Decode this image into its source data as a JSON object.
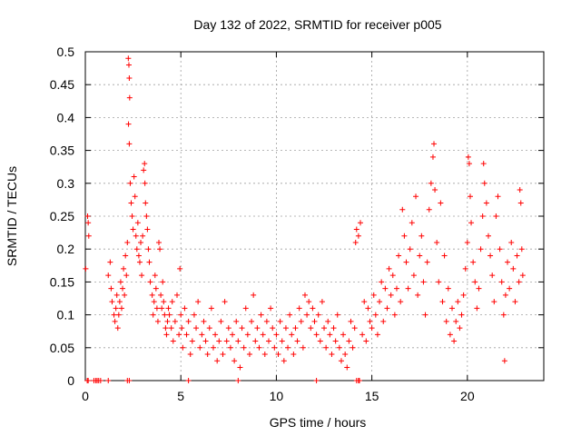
{
  "chart_data": {
    "type": "scatter",
    "title": "Day 132 of 2022, SRMTID for receiver p005",
    "xlabel": "GPS time / hours",
    "ylabel": "SRMTID / TECUs",
    "xlim": [
      0,
      24
    ],
    "ylim": [
      0,
      0.5
    ],
    "xticks": [
      0,
      5,
      10,
      15,
      20
    ],
    "yticks": [
      0,
      0.05,
      0.1,
      0.15,
      0.2,
      0.25,
      0.3,
      0.35,
      0.4,
      0.45,
      0.5
    ],
    "grid": true,
    "marker": "plus",
    "color": "#ff0000",
    "series": [
      {
        "name": "SRMTID",
        "points": [
          [
            0.02,
            0.17
          ],
          [
            0.12,
            0.25
          ],
          [
            0.15,
            0.24
          ],
          [
            0.18,
            0.22
          ],
          [
            0.1,
            0
          ],
          [
            0.15,
            0
          ],
          [
            0.45,
            0
          ],
          [
            0.55,
            0
          ],
          [
            0.62,
            0
          ],
          [
            0.7,
            0
          ],
          [
            0.8,
            0
          ],
          [
            1.2,
            0
          ],
          [
            2.2,
            0
          ],
          [
            2.3,
            0
          ],
          [
            5.4,
            0
          ],
          [
            8.0,
            0
          ],
          [
            12.1,
            0
          ],
          [
            14.2,
            0
          ],
          [
            14.3,
            0
          ],
          [
            14.35,
            0
          ],
          [
            1.2,
            0.16
          ],
          [
            1.3,
            0.18
          ],
          [
            1.35,
            0.14
          ],
          [
            1.4,
            0.12
          ],
          [
            1.5,
            0.1
          ],
          [
            1.55,
            0.09
          ],
          [
            1.6,
            0.11
          ],
          [
            1.65,
            0.13
          ],
          [
            1.7,
            0.08
          ],
          [
            1.75,
            0.1
          ],
          [
            1.8,
            0.12
          ],
          [
            1.85,
            0.15
          ],
          [
            1.9,
            0.11
          ],
          [
            1.95,
            0.14
          ],
          [
            2.0,
            0.17
          ],
          [
            2.05,
            0.13
          ],
          [
            2.1,
            0.19
          ],
          [
            2.15,
            0.16
          ],
          [
            2.2,
            0.21
          ],
          [
            2.25,
            0.49
          ],
          [
            2.28,
            0.48
          ],
          [
            2.3,
            0.46
          ],
          [
            2.32,
            0.43
          ],
          [
            2.26,
            0.39
          ],
          [
            2.3,
            0.36
          ],
          [
            2.35,
            0.3
          ],
          [
            2.4,
            0.27
          ],
          [
            2.45,
            0.25
          ],
          [
            2.5,
            0.23
          ],
          [
            2.55,
            0.31
          ],
          [
            2.6,
            0.28
          ],
          [
            2.65,
            0.22
          ],
          [
            2.7,
            0.2
          ],
          [
            2.75,
            0.24
          ],
          [
            2.8,
            0.19
          ],
          [
            2.85,
            0.18
          ],
          [
            2.9,
            0.21
          ],
          [
            2.95,
            0.16
          ],
          [
            3.0,
            0.22
          ],
          [
            3.05,
            0.32
          ],
          [
            3.1,
            0.33
          ],
          [
            3.12,
            0.3
          ],
          [
            3.15,
            0.27
          ],
          [
            3.2,
            0.25
          ],
          [
            3.25,
            0.23
          ],
          [
            3.3,
            0.2
          ],
          [
            3.35,
            0.18
          ],
          [
            3.4,
            0.15
          ],
          [
            3.5,
            0.13
          ],
          [
            3.55,
            0.1
          ],
          [
            3.6,
            0.12
          ],
          [
            3.65,
            0.16
          ],
          [
            3.7,
            0.14
          ],
          [
            3.75,
            0.11
          ],
          [
            3.8,
            0.09
          ],
          [
            3.85,
            0.21
          ],
          [
            3.9,
            0.2
          ],
          [
            3.95,
            0.13
          ],
          [
            4.0,
            0.11
          ],
          [
            4.05,
            0.15
          ],
          [
            4.1,
            0.12
          ],
          [
            4.15,
            0.1
          ],
          [
            4.2,
            0.08
          ],
          [
            4.25,
            0.07
          ],
          [
            4.3,
            0.09
          ],
          [
            4.35,
            0.11
          ],
          [
            4.4,
            0.1
          ],
          [
            4.5,
            0.08
          ],
          [
            4.55,
            0.12
          ],
          [
            4.6,
            0.06
          ],
          [
            4.7,
            0.09
          ],
          [
            4.8,
            0.13
          ],
          [
            4.9,
            0.07
          ],
          [
            4.95,
            0.17
          ],
          [
            5.0,
            0.1
          ],
          [
            5.05,
            0.08
          ],
          [
            5.1,
            0.05
          ],
          [
            5.2,
            0.11
          ],
          [
            5.3,
            0.07
          ],
          [
            5.4,
            0.09
          ],
          [
            5.5,
            0.04
          ],
          [
            5.6,
            0.06
          ],
          [
            5.7,
            0.1
          ],
          [
            5.8,
            0.08
          ],
          [
            5.9,
            0.12
          ],
          [
            6.0,
            0.05
          ],
          [
            6.1,
            0.07
          ],
          [
            6.2,
            0.09
          ],
          [
            6.3,
            0.06
          ],
          [
            6.4,
            0.04
          ],
          [
            6.5,
            0.08
          ],
          [
            6.6,
            0.11
          ],
          [
            6.7,
            0.05
          ],
          [
            6.8,
            0.07
          ],
          [
            6.9,
            0.03
          ],
          [
            7.0,
            0.06
          ],
          [
            7.1,
            0.09
          ],
          [
            7.2,
            0.04
          ],
          [
            7.3,
            0.12
          ],
          [
            7.4,
            0.06
          ],
          [
            7.5,
            0.08
          ],
          [
            7.6,
            0.05
          ],
          [
            7.7,
            0.07
          ],
          [
            7.8,
            0.03
          ],
          [
            7.9,
            0.09
          ],
          [
            8.0,
            0.06
          ],
          [
            8.1,
            0.02
          ],
          [
            8.2,
            0.08
          ],
          [
            8.3,
            0.05
          ],
          [
            8.4,
            0.11
          ],
          [
            8.5,
            0.07
          ],
          [
            8.6,
            0.04
          ],
          [
            8.7,
            0.09
          ],
          [
            8.8,
            0.13
          ],
          [
            8.9,
            0.06
          ],
          [
            9.0,
            0.08
          ],
          [
            9.1,
            0.05
          ],
          [
            9.2,
            0.1
          ],
          [
            9.3,
            0.07
          ],
          [
            9.4,
            0.04
          ],
          [
            9.5,
            0.09
          ],
          [
            9.6,
            0.06
          ],
          [
            9.7,
            0.11
          ],
          [
            9.8,
            0.08
          ],
          [
            9.9,
            0.05
          ],
          [
            10.0,
            0.07
          ],
          [
            10.1,
            0.04
          ],
          [
            10.2,
            0.09
          ],
          [
            10.3,
            0.06
          ],
          [
            10.4,
            0.03
          ],
          [
            10.5,
            0.08
          ],
          [
            10.6,
            0.05
          ],
          [
            10.7,
            0.1
          ],
          [
            10.8,
            0.07
          ],
          [
            10.9,
            0.04
          ],
          [
            11.0,
            0.08
          ],
          [
            11.1,
            0.06
          ],
          [
            11.2,
            0.11
          ],
          [
            11.3,
            0.09
          ],
          [
            11.4,
            0.05
          ],
          [
            11.5,
            0.13
          ],
          [
            11.6,
            0.1
          ],
          [
            11.7,
            0.12
          ],
          [
            11.8,
            0.08
          ],
          [
            11.9,
            0.11
          ],
          [
            12.0,
            0.09
          ],
          [
            12.1,
            0.07
          ],
          [
            12.2,
            0.1
          ],
          [
            12.3,
            0.06
          ],
          [
            12.4,
            0.12
          ],
          [
            12.5,
            0.08
          ],
          [
            12.6,
            0.05
          ],
          [
            12.7,
            0.09
          ],
          [
            12.8,
            0.07
          ],
          [
            12.9,
            0.04
          ],
          [
            13.0,
            0.08
          ],
          [
            13.1,
            0.06
          ],
          [
            13.2,
            0.1
          ],
          [
            13.3,
            0.05
          ],
          [
            13.4,
            0.03
          ],
          [
            13.5,
            0.07
          ],
          [
            13.6,
            0.04
          ],
          [
            13.7,
            0.02
          ],
          [
            13.8,
            0.06
          ],
          [
            13.9,
            0.09
          ],
          [
            14.0,
            0.05
          ],
          [
            14.1,
            0.08
          ],
          [
            14.15,
            0.21
          ],
          [
            14.2,
            0.23
          ],
          [
            14.3,
            0.22
          ],
          [
            14.4,
            0.24
          ],
          [
            14.5,
            0.07
          ],
          [
            14.6,
            0.12
          ],
          [
            14.7,
            0.06
          ],
          [
            14.8,
            0.11
          ],
          [
            14.9,
            0.09
          ],
          [
            15.0,
            0.08
          ],
          [
            15.1,
            0.13
          ],
          [
            15.2,
            0.1
          ],
          [
            15.3,
            0.07
          ],
          [
            15.4,
            0.12
          ],
          [
            15.5,
            0.15
          ],
          [
            15.6,
            0.09
          ],
          [
            15.7,
            0.14
          ],
          [
            15.8,
            0.11
          ],
          [
            15.9,
            0.17
          ],
          [
            16.0,
            0.13
          ],
          [
            16.1,
            0.16
          ],
          [
            16.2,
            0.1
          ],
          [
            16.3,
            0.14
          ],
          [
            16.4,
            0.19
          ],
          [
            16.5,
            0.12
          ],
          [
            16.6,
            0.26
          ],
          [
            16.7,
            0.22
          ],
          [
            16.8,
            0.18
          ],
          [
            16.9,
            0.14
          ],
          [
            17.0,
            0.2
          ],
          [
            17.1,
            0.24
          ],
          [
            17.2,
            0.16
          ],
          [
            17.3,
            0.28
          ],
          [
            17.4,
            0.13
          ],
          [
            17.5,
            0.19
          ],
          [
            17.6,
            0.22
          ],
          [
            17.7,
            0.15
          ],
          [
            17.8,
            0.1
          ],
          [
            17.9,
            0.18
          ],
          [
            18.0,
            0.26
          ],
          [
            18.1,
            0.3
          ],
          [
            18.2,
            0.34
          ],
          [
            18.25,
            0.36
          ],
          [
            18.3,
            0.29
          ],
          [
            18.4,
            0.21
          ],
          [
            18.5,
            0.15
          ],
          [
            18.6,
            0.27
          ],
          [
            18.7,
            0.12
          ],
          [
            18.8,
            0.19
          ],
          [
            18.9,
            0.09
          ],
          [
            19.0,
            0.14
          ],
          [
            19.1,
            0.07
          ],
          [
            19.2,
            0.11
          ],
          [
            19.3,
            0.06
          ],
          [
            19.4,
            0.09
          ],
          [
            19.5,
            0.12
          ],
          [
            19.6,
            0.08
          ],
          [
            19.7,
            0.1
          ],
          [
            19.8,
            0.13
          ],
          [
            19.9,
            0.17
          ],
          [
            20.0,
            0.21
          ],
          [
            20.05,
            0.34
          ],
          [
            20.1,
            0.33
          ],
          [
            20.15,
            0.28
          ],
          [
            20.2,
            0.24
          ],
          [
            20.3,
            0.18
          ],
          [
            20.4,
            0.15
          ],
          [
            20.5,
            0.11
          ],
          [
            20.6,
            0.14
          ],
          [
            20.7,
            0.2
          ],
          [
            20.8,
            0.25
          ],
          [
            20.85,
            0.33
          ],
          [
            20.9,
            0.3
          ],
          [
            21.0,
            0.27
          ],
          [
            21.1,
            0.22
          ],
          [
            21.2,
            0.19
          ],
          [
            21.3,
            0.16
          ],
          [
            21.4,
            0.12
          ],
          [
            21.5,
            0.25
          ],
          [
            21.6,
            0.28
          ],
          [
            21.7,
            0.2
          ],
          [
            21.8,
            0.15
          ],
          [
            21.9,
            0.1
          ],
          [
            21.95,
            0.03
          ],
          [
            22.0,
            0.13
          ],
          [
            22.1,
            0.18
          ],
          [
            22.2,
            0.14
          ],
          [
            22.3,
            0.21
          ],
          [
            22.4,
            0.17
          ],
          [
            22.5,
            0.12
          ],
          [
            22.6,
            0.19
          ],
          [
            22.7,
            0.15
          ],
          [
            22.75,
            0.29
          ],
          [
            22.8,
            0.27
          ],
          [
            22.85,
            0.2
          ],
          [
            22.9,
            0.16
          ]
        ]
      }
    ]
  }
}
